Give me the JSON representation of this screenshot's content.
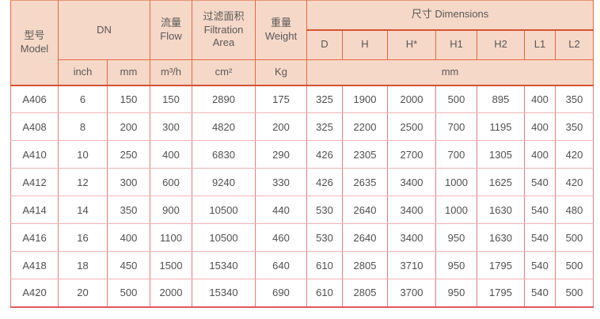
{
  "colors": {
    "header_bg": "#f6d8c8",
    "header_border": "#e06a40",
    "header_divider": "#d65330",
    "body_grid_vertical": "#e27d7d",
    "body_grid_horizontal": "#f2b3b3",
    "body_outer_bottom": "#e05a5a",
    "header_text": "#585858",
    "body_text": "#4f4f4f"
  },
  "header": {
    "model_zh": "型号",
    "model_en": "Model",
    "dn": "DN",
    "flow_zh": "流量",
    "flow_en": "Flow",
    "filtration_zh": "过滤面积",
    "filtration_en_1": "Filtration",
    "filtration_en_2": "Area",
    "weight_zh": "重量",
    "weight_en": "Weight",
    "dimensions": "尺寸 Dimensions",
    "dim_cols": [
      "D",
      "H",
      "H*",
      "H1",
      "H2",
      "L1",
      "L2"
    ],
    "unit_inch": "inch",
    "unit_mm": "mm",
    "unit_flow": "m³/h",
    "unit_area": "cm²",
    "unit_weight": "Kg",
    "unit_dims": "mm"
  },
  "rows": [
    [
      "A406",
      "6",
      "150",
      "150",
      "2890",
      "175",
      "325",
      "1900",
      "2000",
      "500",
      "895",
      "400",
      "350"
    ],
    [
      "A408",
      "8",
      "200",
      "300",
      "4820",
      "200",
      "325",
      "2200",
      "2500",
      "700",
      "1195",
      "400",
      "350"
    ],
    [
      "A410",
      "10",
      "250",
      "400",
      "6830",
      "290",
      "426",
      "2305",
      "2700",
      "700",
      "1305",
      "400",
      "420"
    ],
    [
      "A412",
      "12",
      "300",
      "600",
      "9240",
      "330",
      "426",
      "2635",
      "3400",
      "1000",
      "1625",
      "540",
      "420"
    ],
    [
      "A414",
      "14",
      "350",
      "900",
      "10500",
      "440",
      "530",
      "2640",
      "3400",
      "1000",
      "1630",
      "540",
      "480"
    ],
    [
      "A416",
      "16",
      "400",
      "1100",
      "10500",
      "460",
      "530",
      "2640",
      "3400",
      "950",
      "1630",
      "540",
      "500"
    ],
    [
      "A418",
      "18",
      "450",
      "1500",
      "15340",
      "640",
      "610",
      "2805",
      "3710",
      "950",
      "1795",
      "540",
      "500"
    ],
    [
      "A420",
      "20",
      "500",
      "2000",
      "15340",
      "690",
      "610",
      "2805",
      "3700",
      "950",
      "1795",
      "540",
      "500"
    ]
  ]
}
